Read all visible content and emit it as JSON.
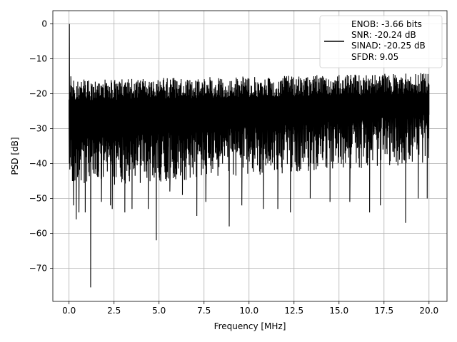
{
  "chart_data": {
    "type": "line",
    "title": "",
    "xlabel": "Frequency [MHz]",
    "ylabel": "PSD [dB]",
    "xlim": [
      -0.9,
      21.0
    ],
    "ylim": [
      -79.5,
      3.8
    ],
    "xticks": [
      0.0,
      2.5,
      5.0,
      7.5,
      10.0,
      12.5,
      15.0,
      17.5,
      20.0
    ],
    "xtick_labels": [
      "0.0",
      "2.5",
      "5.0",
      "7.5",
      "10.0",
      "12.5",
      "15.0",
      "17.5",
      "20.0"
    ],
    "yticks": [
      0,
      -10,
      -20,
      -30,
      -40,
      -50,
      -60,
      -70
    ],
    "ytick_labels": [
      "0",
      "−10",
      "−20",
      "−30",
      "−40",
      "−50",
      "−60",
      "−70"
    ],
    "grid": true,
    "legend_position": "top-right",
    "legend_lines": [
      "ENOB: -3.66 bits",
      "SNR: -20.24 dB",
      "SINAD: -20.25 dB",
      "SFDR: 9.05"
    ],
    "series": [
      {
        "color": "#000000",
        "noise_floor_db": -27,
        "upper_envelope_db": [
          -16,
          -14
        ],
        "lower_envelope_db": [
          -47,
          -40
        ],
        "x_range": [
          0,
          20
        ],
        "points": [
          [
            0.0,
            -27
          ],
          [
            0.02,
            0.0
          ],
          [
            0.05,
            -40
          ],
          [
            0.1,
            -15
          ],
          [
            0.2,
            -45
          ],
          [
            0.25,
            -52
          ],
          [
            0.4,
            -56
          ],
          [
            0.55,
            -54
          ],
          [
            0.9,
            -54
          ],
          [
            1.2,
            -75.5
          ],
          [
            1.8,
            -51
          ],
          [
            2.3,
            -52
          ],
          [
            2.4,
            -53
          ],
          [
            3.1,
            -54
          ],
          [
            3.5,
            -53
          ],
          [
            4.4,
            -53
          ],
          [
            4.85,
            -62
          ],
          [
            5.6,
            -48
          ],
          [
            6.3,
            -49
          ],
          [
            7.1,
            -55
          ],
          [
            7.6,
            -51
          ],
          [
            8.9,
            -58
          ],
          [
            9.6,
            -52
          ],
          [
            10.8,
            -53
          ],
          [
            11.6,
            -53
          ],
          [
            12.3,
            -54
          ],
          [
            13.4,
            -50
          ],
          [
            14.5,
            -51
          ],
          [
            15.6,
            -51
          ],
          [
            16.7,
            -54
          ],
          [
            17.3,
            -52
          ],
          [
            18.7,
            -57
          ],
          [
            19.4,
            -50
          ],
          [
            19.9,
            -50
          ],
          [
            20.0,
            -26
          ]
        ]
      }
    ]
  }
}
